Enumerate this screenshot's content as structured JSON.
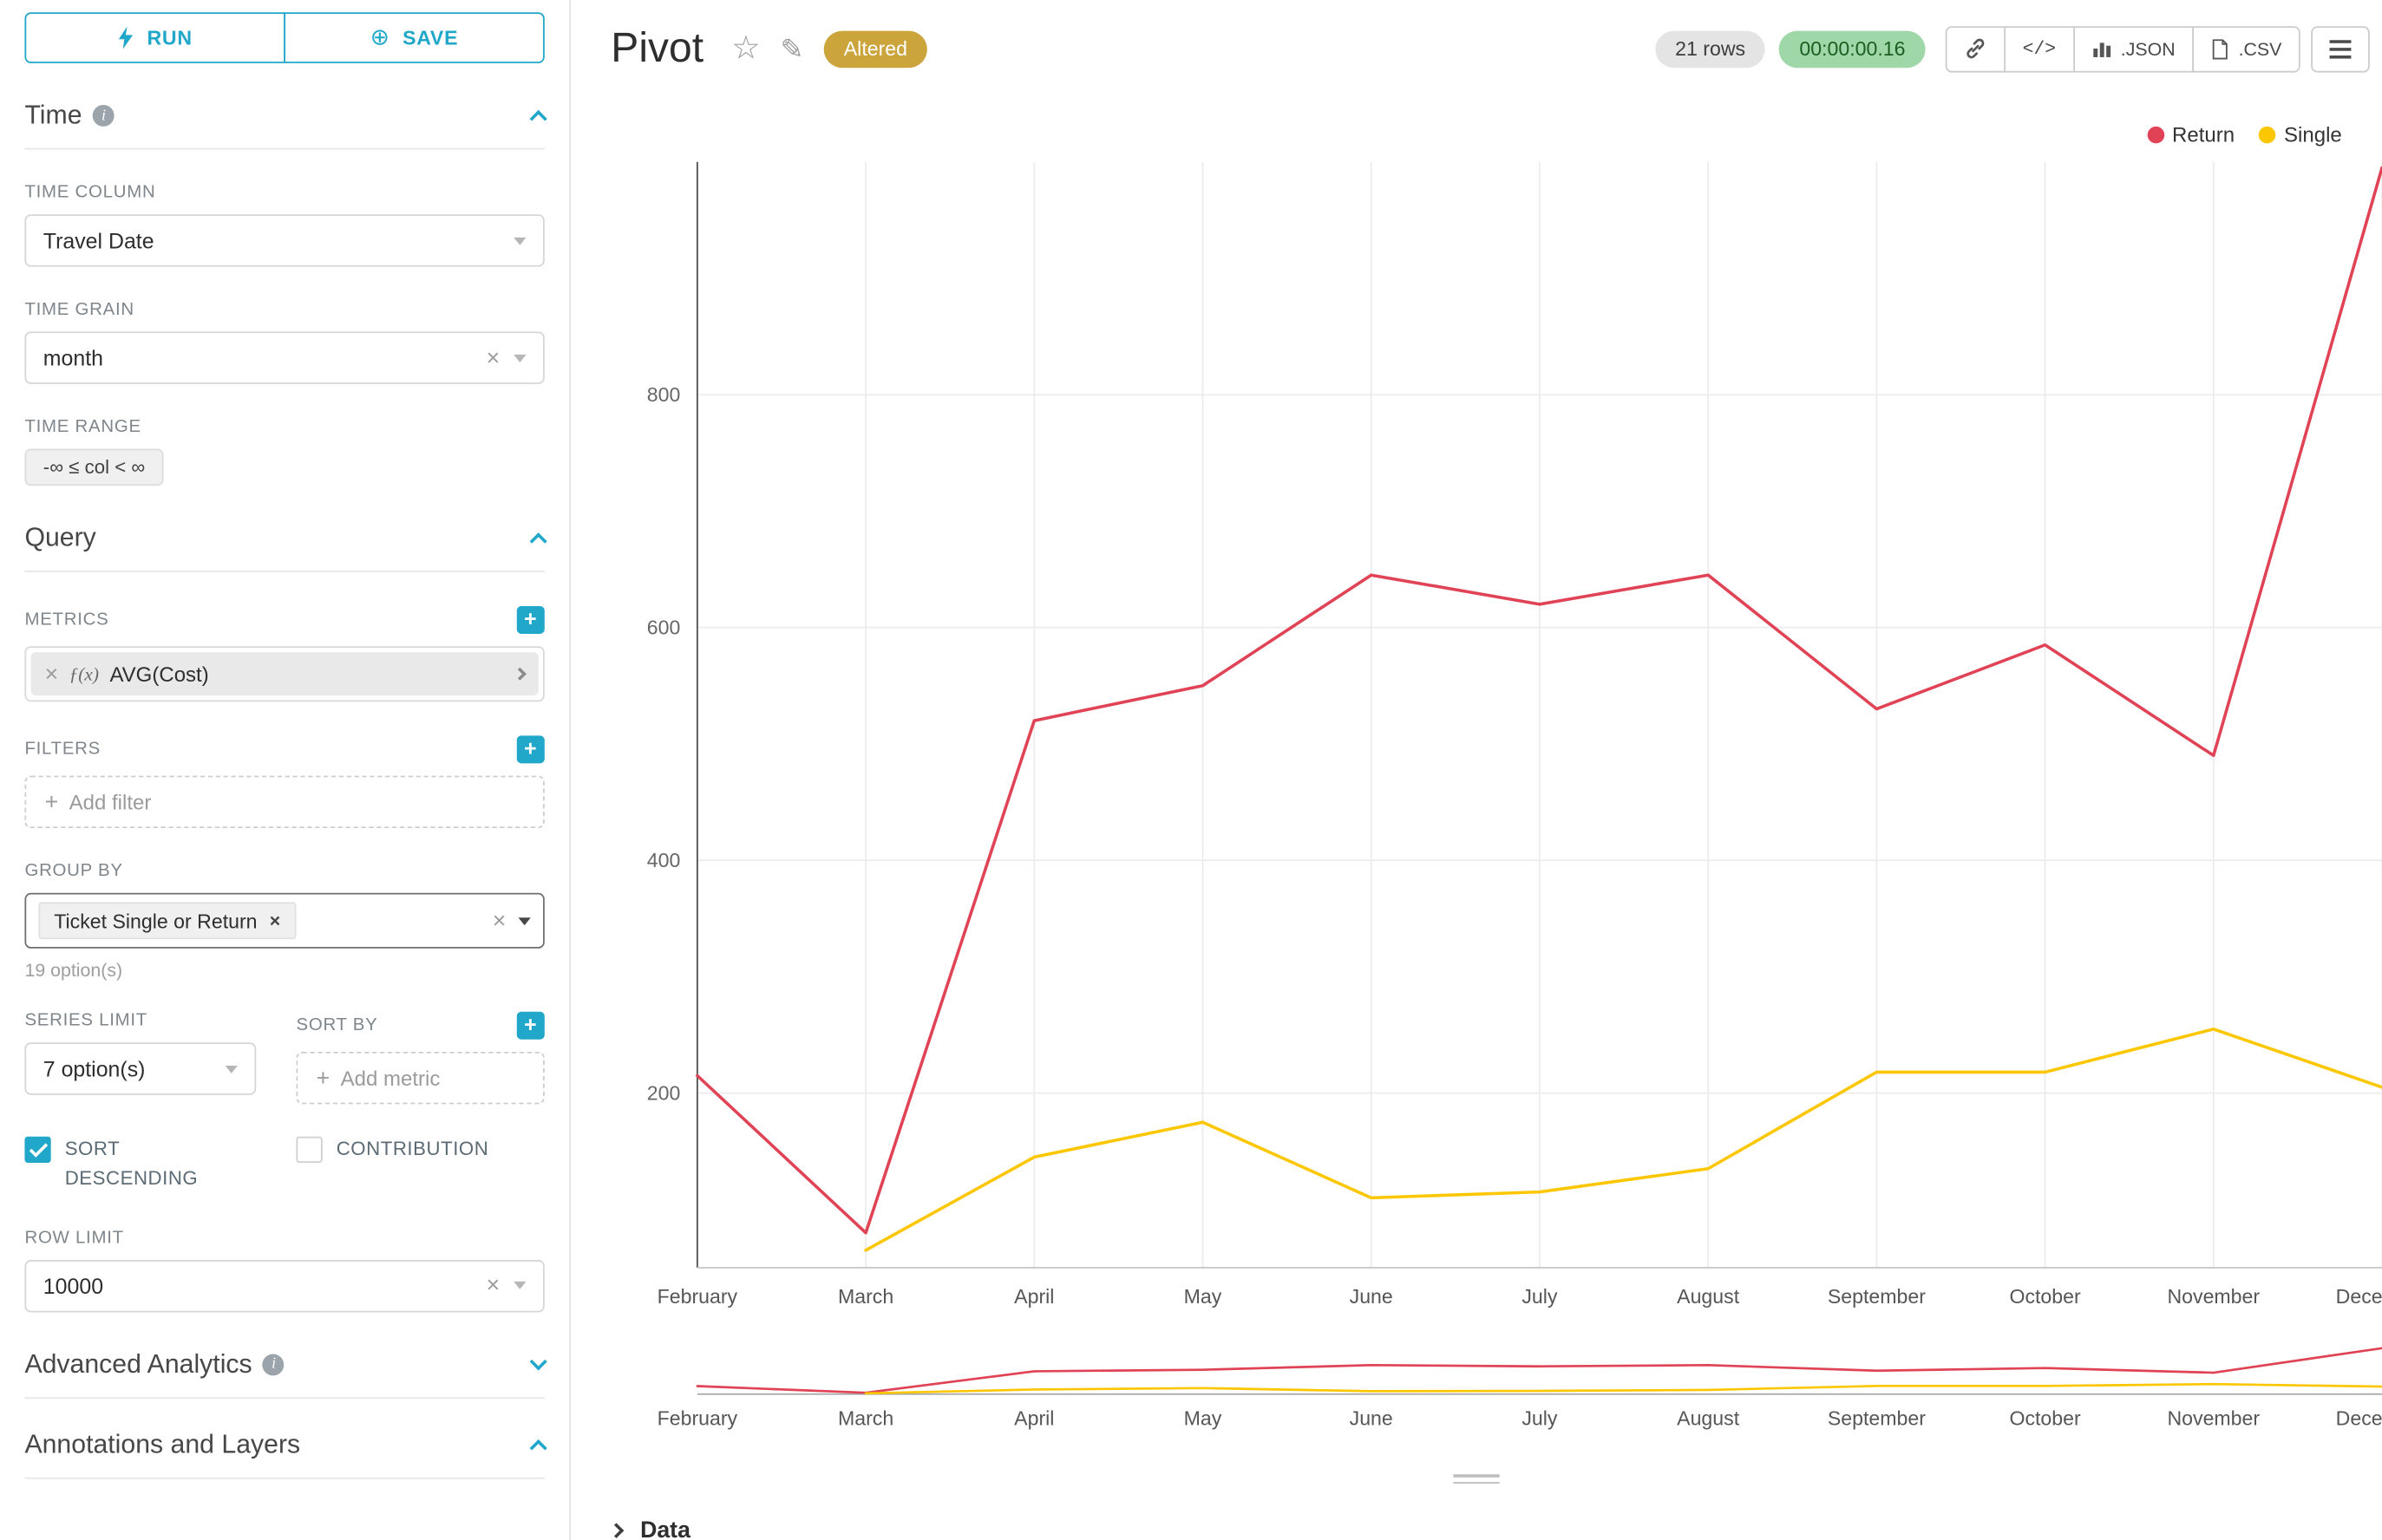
{
  "colors": {
    "accent": "#20A7C9",
    "altered_bg": "#CCA43C",
    "rows_bg": "#E4E4E4",
    "timer_bg": "#9FD7A9",
    "timer_text": "#1B5E20",
    "return_series": "#E04355",
    "single_series": "#FCC700"
  },
  "icons": {
    "star": "☆",
    "edit": "✎",
    "save_plus": "⊕",
    "clear": "×",
    "add": "+"
  },
  "toolbar": {
    "run": "RUN",
    "save": "SAVE"
  },
  "panel": {
    "time": {
      "title": "Time",
      "column_label": "TIME COLUMN",
      "column_value": "Travel Date",
      "grain_label": "TIME GRAIN",
      "grain_value": "month",
      "range_label": "TIME RANGE",
      "range_value": "-∞ ≤ col < ∞"
    },
    "query": {
      "title": "Query",
      "metrics_label": "METRICS",
      "metric_fx": "ƒ(x)",
      "metric_name": "AVG(Cost)",
      "filters_label": "FILTERS",
      "add_filter": "Add filter",
      "group_by_label": "GROUP BY",
      "group_by_value": "Ticket Single or Return",
      "options_hint": "19 option(s)",
      "series_limit_label": "SERIES LIMIT",
      "series_limit_value": "7 option(s)",
      "sort_by_label": "SORT BY",
      "add_metric": "Add metric",
      "sort_descending": "SORT DESCENDING",
      "contribution": "CONTRIBUTION",
      "row_limit_label": "ROW LIMIT",
      "row_limit_value": "10000"
    },
    "advanced_title": "Advanced Analytics",
    "annotations_title": "Annotations and Layers"
  },
  "header": {
    "title": "Pivot",
    "altered": "Altered",
    "rows": "21 rows",
    "timer": "00:00:00.16",
    "code_btn": "</>",
    "json_btn": ".JSON",
    "csv_btn": ".CSV"
  },
  "data_panel": {
    "title": "Data"
  },
  "chart_data": {
    "type": "line",
    "title": "",
    "xlabel": "",
    "ylabel": "",
    "x": [
      "February",
      "March",
      "April",
      "May",
      "June",
      "July",
      "August",
      "September",
      "October",
      "November",
      "December"
    ],
    "series": [
      {
        "name": "Return",
        "color": "#E04355",
        "values": [
          215,
          80,
          520,
          550,
          645,
          620,
          645,
          530,
          585,
          490,
          995
        ]
      },
      {
        "name": "Single",
        "color": "#FCC700",
        "values": [
          null,
          65,
          145,
          175,
          110,
          115,
          135,
          218,
          218,
          255,
          205
        ]
      }
    ],
    "ylim": [
      50,
      1000
    ],
    "yticks": [
      200,
      400,
      600,
      800
    ],
    "grid": true,
    "legend_position": "top-right"
  }
}
